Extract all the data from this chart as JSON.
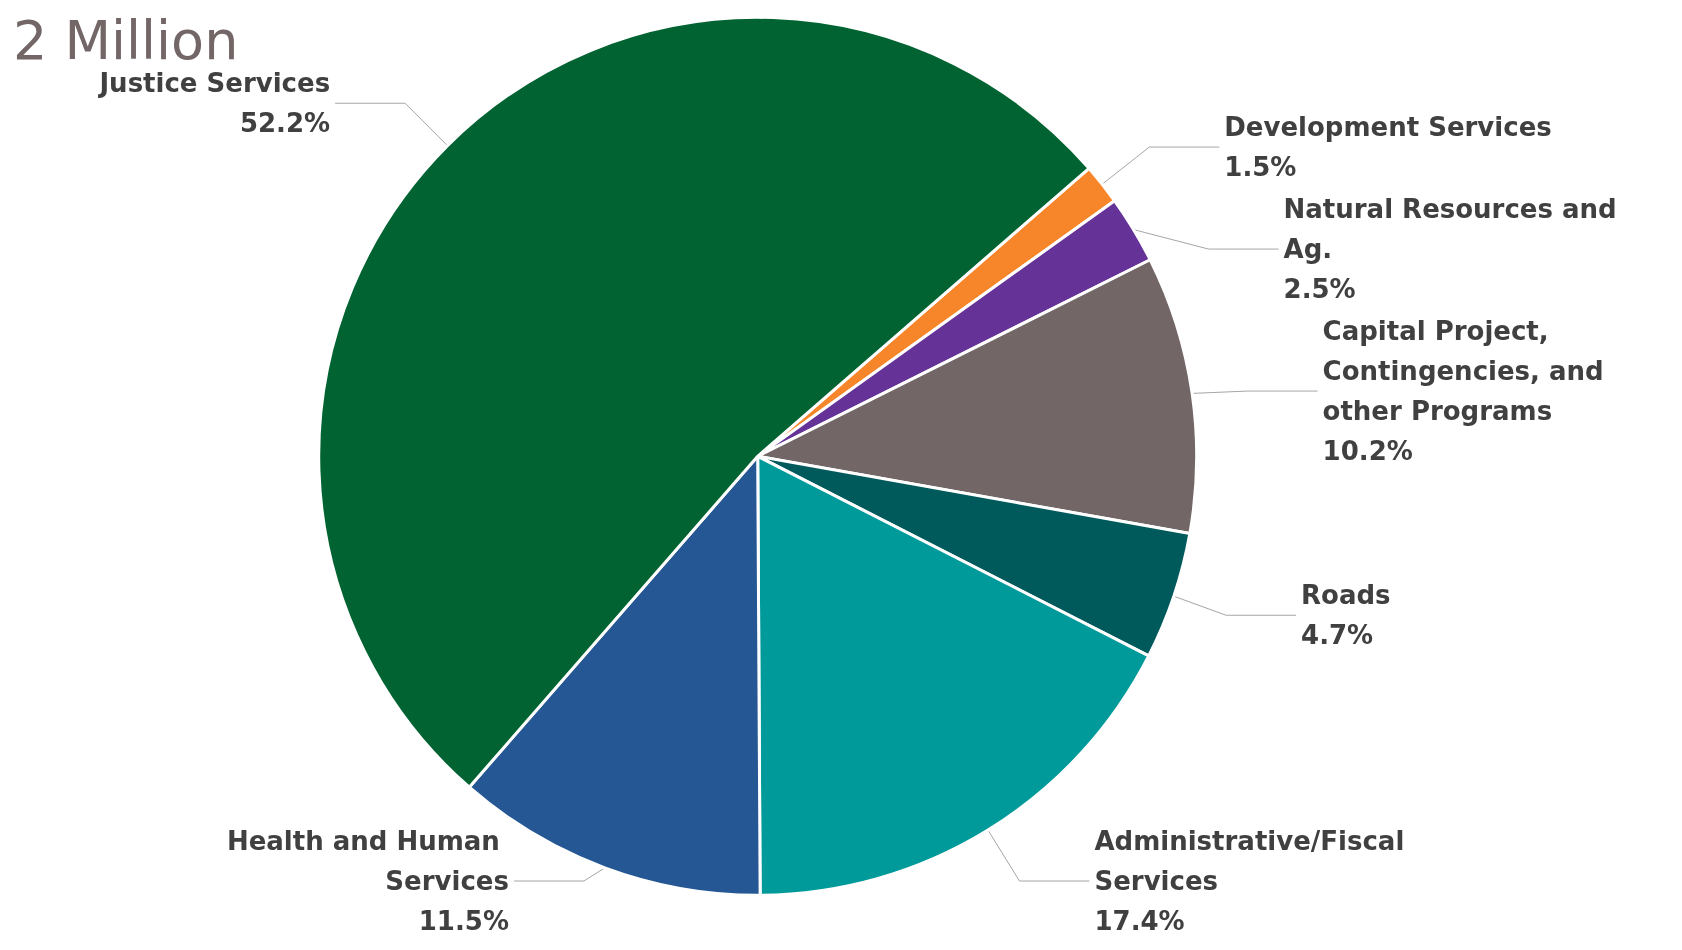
{
  "chart_data": {
    "type": "pie",
    "title": "2 Million",
    "categories": [
      "Development Services",
      "Natural Resources and Ag.",
      "Capital Project, Contingencies, and other Programs",
      "Roads",
      "Administrative/Fiscal Services",
      "Health and Human Services",
      "Justice Services"
    ],
    "values": [
      1.5,
      2.5,
      10.2,
      4.7,
      17.4,
      11.5,
      52.2
    ],
    "colors": [
      "#f7862a",
      "#653298",
      "#736666",
      "#005a5c",
      "#009a9a",
      "#245794",
      "#006331"
    ],
    "value_labels": [
      "1.5%",
      "2.5%",
      "10.2%",
      "4.7%",
      "17.4%",
      "11.5%",
      "52.2%"
    ],
    "legend": false
  }
}
